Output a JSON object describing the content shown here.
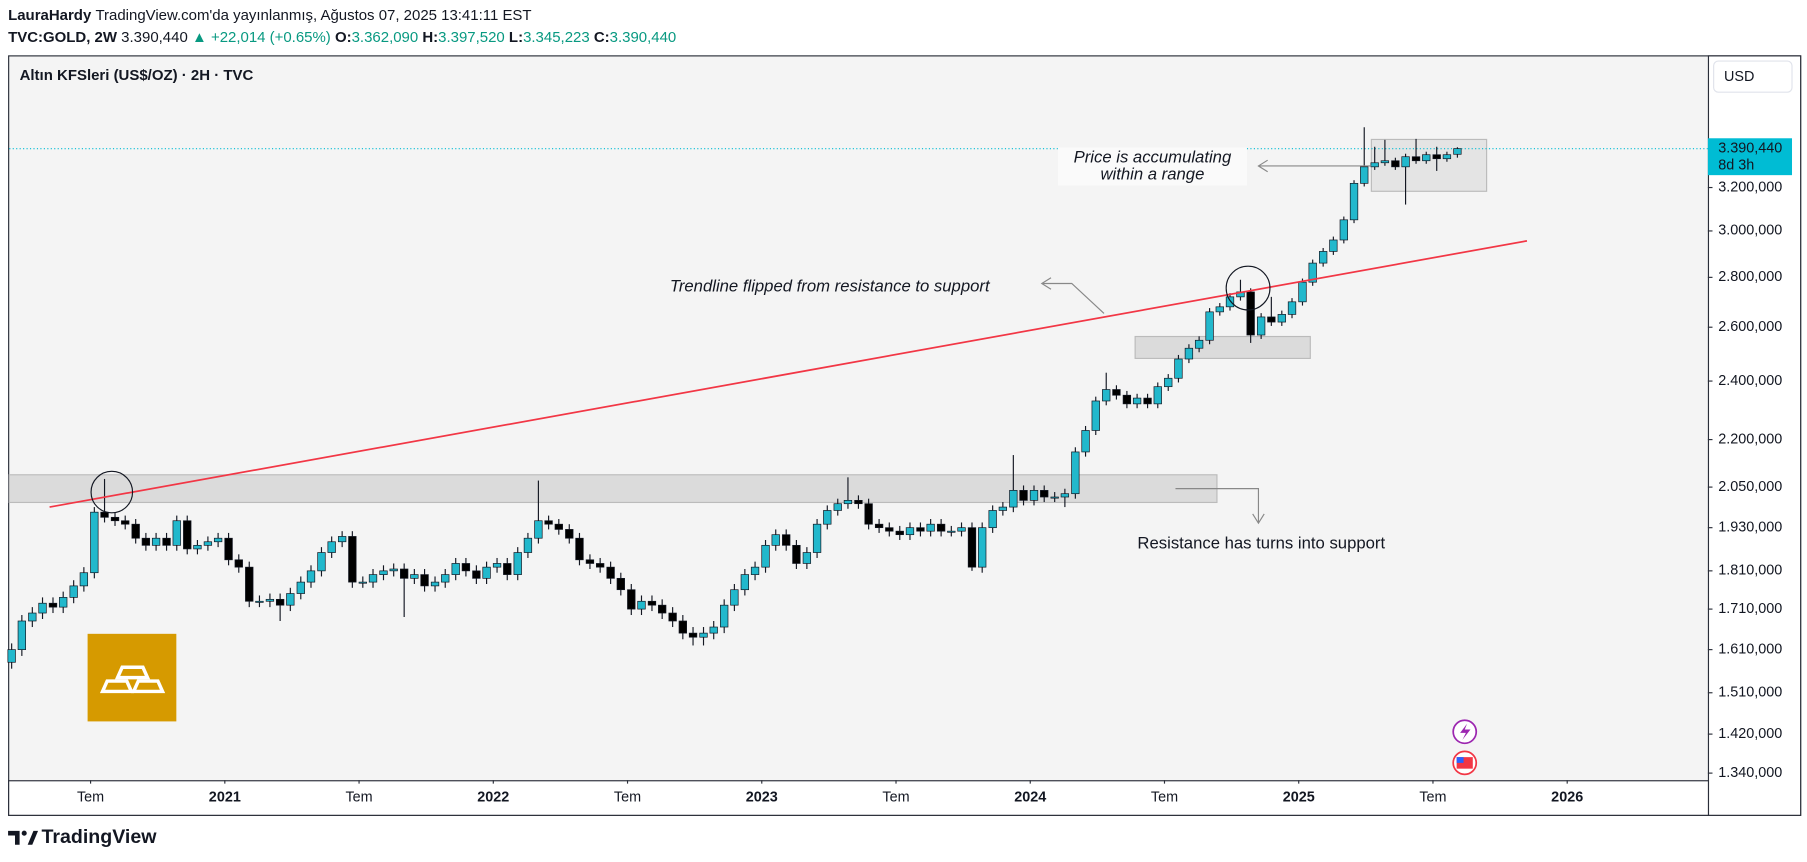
{
  "header": {
    "author": "LauraHardy",
    "published": "TradingView.com'da yayınlanmış, Ağustos 07, 2025 13:41:11 EST",
    "symbol": "TVC:GOLD, 2W",
    "price": "3.390,440",
    "change": "+22,014 (+0.65%)",
    "ohlc": [
      {
        "label": "O:",
        "value": "3.362,090"
      },
      {
        "label": "H:",
        "value": "3.397,520"
      },
      {
        "label": "L:",
        "value": "3.345,223"
      },
      {
        "label": "C:",
        "value": "3.390,440"
      }
    ]
  },
  "chart_data": {
    "type": "candlestick",
    "title": "Altın KFSleri (US$/OZ) · 2H · TVC",
    "currency": "USD",
    "log_scale": true,
    "grid": false,
    "up_color": "#22b8cc",
    "down_color": "#000000",
    "x": [
      2020.206,
      2020.244,
      2020.283,
      2020.321,
      2020.36,
      2020.398,
      2020.437,
      2020.475,
      2020.514,
      2020.552,
      2020.591,
      2020.629,
      2020.668,
      2020.706,
      2020.744,
      2020.783,
      2020.821,
      2020.86,
      2020.898,
      2020.937,
      2020.975,
      2021.014,
      2021.052,
      2021.091,
      2021.129,
      2021.168,
      2021.206,
      2021.244,
      2021.283,
      2021.321,
      2021.36,
      2021.398,
      2021.437,
      2021.475,
      2021.514,
      2021.552,
      2021.591,
      2021.629,
      2021.668,
      2021.706,
      2021.744,
      2021.783,
      2021.821,
      2021.86,
      2021.898,
      2021.937,
      2021.975,
      2022.014,
      2022.052,
      2022.091,
      2022.129,
      2022.168,
      2022.206,
      2022.244,
      2022.283,
      2022.321,
      2022.36,
      2022.398,
      2022.437,
      2022.475,
      2022.514,
      2022.552,
      2022.591,
      2022.629,
      2022.668,
      2022.706,
      2022.744,
      2022.783,
      2022.821,
      2022.86,
      2022.898,
      2022.937,
      2022.975,
      2023.014,
      2023.052,
      2023.091,
      2023.129,
      2023.168,
      2023.206,
      2023.244,
      2023.283,
      2023.321,
      2023.36,
      2023.398,
      2023.437,
      2023.475,
      2023.514,
      2023.552,
      2023.591,
      2023.629,
      2023.668,
      2023.706,
      2023.744,
      2023.783,
      2023.821,
      2023.86,
      2023.898,
      2023.937,
      2023.975,
      2024.014,
      2024.052,
      2024.091,
      2024.129,
      2024.168,
      2024.206,
      2024.244,
      2024.283,
      2024.321,
      2024.36,
      2024.398,
      2024.437,
      2024.475,
      2024.514,
      2024.552,
      2024.591,
      2024.629,
      2024.668,
      2024.706,
      2024.744,
      2024.783,
      2024.821,
      2024.86,
      2024.898,
      2024.937,
      2024.975,
      2025.014,
      2025.052,
      2025.091,
      2025.129,
      2025.168,
      2025.206,
      2025.244,
      2025.283,
      2025.321,
      2025.36,
      2025.398,
      2025.437,
      2025.475,
      2025.514,
      2025.552,
      2025.591
    ],
    "open": [
      1580,
      1610,
      1680,
      1700,
      1725,
      1715,
      1740,
      1770,
      1805,
      1975,
      1960,
      1950,
      1940,
      1900,
      1880,
      1900,
      1880,
      1950,
      1870,
      1880,
      1890,
      1900,
      1840,
      1820,
      1730,
      1730,
      1735,
      1720,
      1750,
      1780,
      1810,
      1860,
      1890,
      1905,
      1780,
      1780,
      1800,
      1810,
      1815,
      1790,
      1800,
      1770,
      1780,
      1800,
      1830,
      1810,
      1790,
      1820,
      1830,
      1800,
      1860,
      1900,
      1950,
      1940,
      1925,
      1900,
      1840,
      1830,
      1820,
      1790,
      1760,
      1710,
      1730,
      1720,
      1700,
      1680,
      1650,
      1640,
      1650,
      1665,
      1720,
      1760,
      1800,
      1820,
      1880,
      1910,
      1880,
      1830,
      1860,
      1940,
      1980,
      2000,
      2010,
      2000,
      1940,
      1930,
      1920,
      1910,
      1930,
      1920,
      1940,
      1920,
      1920,
      1930,
      1820,
      1930,
      1980,
      1990,
      2040,
      2010,
      2040,
      2020,
      2020,
      2030,
      2160,
      2230,
      2330,
      2370,
      2350,
      2320,
      2340,
      2320,
      2380,
      2410,
      2480,
      2520,
      2550,
      2660,
      2680,
      2720,
      2740,
      2570,
      2640,
      2620,
      2650,
      2700,
      2780,
      2860,
      2910,
      2960,
      3050,
      3220,
      3300,
      3320,
      3330,
      3300,
      3350,
      3330,
      3360,
      3340,
      3362.09
    ],
    "high": [
      1625,
      1695,
      1715,
      1740,
      1740,
      1755,
      1785,
      1820,
      1990,
      2075,
      1975,
      1965,
      1955,
      1915,
      1915,
      1915,
      1965,
      1965,
      1895,
      1905,
      1915,
      1915,
      1855,
      1835,
      1745,
      1750,
      1750,
      1765,
      1795,
      1825,
      1875,
      1905,
      1920,
      1920,
      1795,
      1815,
      1825,
      1830,
      1830,
      1815,
      1815,
      1795,
      1815,
      1845,
      1845,
      1825,
      1835,
      1845,
      1845,
      1875,
      1915,
      2070,
      1965,
      1955,
      1940,
      1915,
      1855,
      1845,
      1835,
      1805,
      1775,
      1745,
      1745,
      1735,
      1715,
      1695,
      1665,
      1665,
      1680,
      1735,
      1775,
      1815,
      1835,
      1895,
      1925,
      1925,
      1895,
      1875,
      1955,
      1995,
      2015,
      2080,
      2025,
      2015,
      1955,
      1945,
      1935,
      1945,
      1945,
      1955,
      1955,
      1935,
      1945,
      1945,
      1945,
      1995,
      2005,
      2150,
      2055,
      2055,
      2055,
      2035,
      2045,
      2175,
      2245,
      2345,
      2430,
      2385,
      2365,
      2355,
      2355,
      2395,
      2425,
      2495,
      2535,
      2565,
      2675,
      2695,
      2735,
      2790,
      2755,
      2655,
      2720,
      2665,
      2715,
      2795,
      2875,
      2925,
      2975,
      3065,
      3235,
      3500,
      3400,
      3435,
      3345,
      3365,
      3440,
      3375,
      3400,
      3375,
      3397.52
    ],
    "low": [
      1565,
      1595,
      1665,
      1685,
      1700,
      1700,
      1725,
      1755,
      1790,
      1945,
      1935,
      1925,
      1885,
      1865,
      1865,
      1865,
      1865,
      1855,
      1855,
      1865,
      1875,
      1825,
      1805,
      1715,
      1715,
      1715,
      1680,
      1705,
      1735,
      1765,
      1795,
      1845,
      1875,
      1765,
      1765,
      1765,
      1785,
      1795,
      1690,
      1775,
      1755,
      1755,
      1765,
      1785,
      1795,
      1775,
      1775,
      1805,
      1785,
      1785,
      1845,
      1885,
      1925,
      1910,
      1885,
      1825,
      1815,
      1805,
      1775,
      1745,
      1695,
      1695,
      1705,
      1685,
      1665,
      1635,
      1620,
      1620,
      1635,
      1650,
      1705,
      1745,
      1785,
      1805,
      1865,
      1865,
      1815,
      1815,
      1845,
      1925,
      1965,
      1985,
      1985,
      1925,
      1915,
      1905,
      1895,
      1895,
      1905,
      1905,
      1905,
      1905,
      1905,
      1810,
      1805,
      1915,
      1965,
      1975,
      1995,
      1995,
      2005,
      2005,
      1990,
      2015,
      2145,
      2215,
      2315,
      2335,
      2305,
      2305,
      2305,
      2305,
      2365,
      2395,
      2465,
      2505,
      2535,
      2645,
      2665,
      2705,
      2540,
      2555,
      2605,
      2605,
      2635,
      2685,
      2765,
      2845,
      2895,
      2945,
      3035,
      3205,
      3285,
      3305,
      3285,
      3120,
      3315,
      3315,
      3280,
      3325,
      3345.223
    ],
    "close": [
      1610,
      1680,
      1700,
      1725,
      1715,
      1740,
      1770,
      1805,
      1975,
      1960,
      1950,
      1940,
      1900,
      1880,
      1900,
      1880,
      1950,
      1870,
      1880,
      1890,
      1900,
      1840,
      1820,
      1730,
      1730,
      1735,
      1720,
      1750,
      1780,
      1810,
      1860,
      1890,
      1905,
      1780,
      1780,
      1800,
      1810,
      1815,
      1790,
      1800,
      1770,
      1780,
      1800,
      1830,
      1810,
      1790,
      1820,
      1830,
      1800,
      1860,
      1900,
      1950,
      1940,
      1925,
      1900,
      1840,
      1830,
      1820,
      1790,
      1760,
      1710,
      1730,
      1720,
      1700,
      1680,
      1650,
      1640,
      1650,
      1665,
      1720,
      1760,
      1800,
      1820,
      1880,
      1910,
      1880,
      1830,
      1860,
      1940,
      1980,
      2000,
      2010,
      2000,
      1940,
      1930,
      1920,
      1910,
      1930,
      1920,
      1940,
      1920,
      1920,
      1930,
      1820,
      1930,
      1980,
      1990,
      2040,
      2010,
      2040,
      2020,
      2020,
      2030,
      2160,
      2230,
      2330,
      2370,
      2350,
      2320,
      2340,
      2320,
      2380,
      2410,
      2480,
      2520,
      2550,
      2660,
      2680,
      2720,
      2740,
      2570,
      2640,
      2620,
      2650,
      2700,
      2780,
      2860,
      2910,
      2960,
      3050,
      3220,
      3300,
      3320,
      3330,
      3300,
      3350,
      3330,
      3360,
      3340,
      3360,
      3390.44
    ],
    "xlim": [
      2020.197,
      2026.524
    ],
    "xticks": [
      {
        "value": 2020.5,
        "label": "Tem"
      },
      2021,
      {
        "value": 2021.5,
        "label": "Tem"
      },
      2022,
      {
        "value": 2022.5,
        "label": "Tem"
      },
      2023,
      {
        "value": 2023.5,
        "label": "Tem"
      },
      2024,
      {
        "value": 2024.5,
        "label": "Tem"
      },
      2025,
      {
        "value": 2025.5,
        "label": "Tem"
      },
      2026
    ],
    "ylim": [
      1326,
      3895
    ],
    "yticks": [
      {
        "value": 3200,
        "label": "3.200,000"
      },
      {
        "value": 3000,
        "label": "3.000,000"
      },
      {
        "value": 2800,
        "label": "2.800,000"
      },
      {
        "value": 2600,
        "label": "2.600,000"
      },
      {
        "value": 2400,
        "label": "2.400,000"
      },
      {
        "value": 2200,
        "label": "2.200,000"
      },
      {
        "value": 2050,
        "label": "2.050,000"
      },
      {
        "value": 1930,
        "label": "1.930,000"
      },
      {
        "value": 1810,
        "label": "1.810,000"
      },
      {
        "value": 1710,
        "label": "1.710,000"
      },
      {
        "value": 1610,
        "label": "1.610,000"
      },
      {
        "value": 1510,
        "label": "1.510,000"
      },
      {
        "value": 1420,
        "label": "1.420,000"
      },
      {
        "value": 1340,
        "label": "1.340,000"
      }
    ],
    "last_price": {
      "value": 3390.44,
      "label": "3.390,440"
    },
    "countdown": "8d 3h",
    "last_price_color": "#00bcd4",
    "annotations": {
      "range": [
        "Price is accumulating",
        "within a range"
      ],
      "trendline": "Trendline flipped from  resistance to support",
      "support": "Resistance has turns into support"
    }
  },
  "footer": {
    "brand": "TradingView"
  }
}
